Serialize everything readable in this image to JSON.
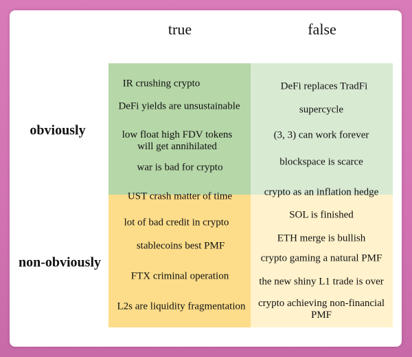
{
  "columns": [
    "true",
    "false"
  ],
  "rows": [
    "obviously",
    "non-obviously"
  ],
  "colors": {
    "obviously_true": "#b6d7a8",
    "obviously_false": "#d9ead3",
    "nonobviously_true": "#fddd8a",
    "nonobviously_false": "#fff2cc"
  },
  "quadrants": {
    "obviously_true": [
      "IR crushing crypto",
      "DeFi yields are unsustainable",
      "low float high FDV tokens\nwill get annihilated",
      "war is bad for crypto"
    ],
    "obviously_false": [
      "DeFi replaces TradFi",
      "supercycle",
      "(3, 3) can work forever",
      "blockspace is scarce",
      "crypto as an inflation hedge"
    ],
    "nonobviously_true": [
      "UST crash matter of time",
      "lot of bad credit in crypto",
      "stablecoins best PMF",
      "FTX criminal operation",
      "L2s are liquidity fragmentation"
    ],
    "nonobviously_false": [
      "SOL is finished",
      "ETH merge is bullish",
      "crypto gaming a natural PMF",
      "the new shiny L1 trade is over",
      "crypto achieving non-financial\nPMF"
    ]
  }
}
